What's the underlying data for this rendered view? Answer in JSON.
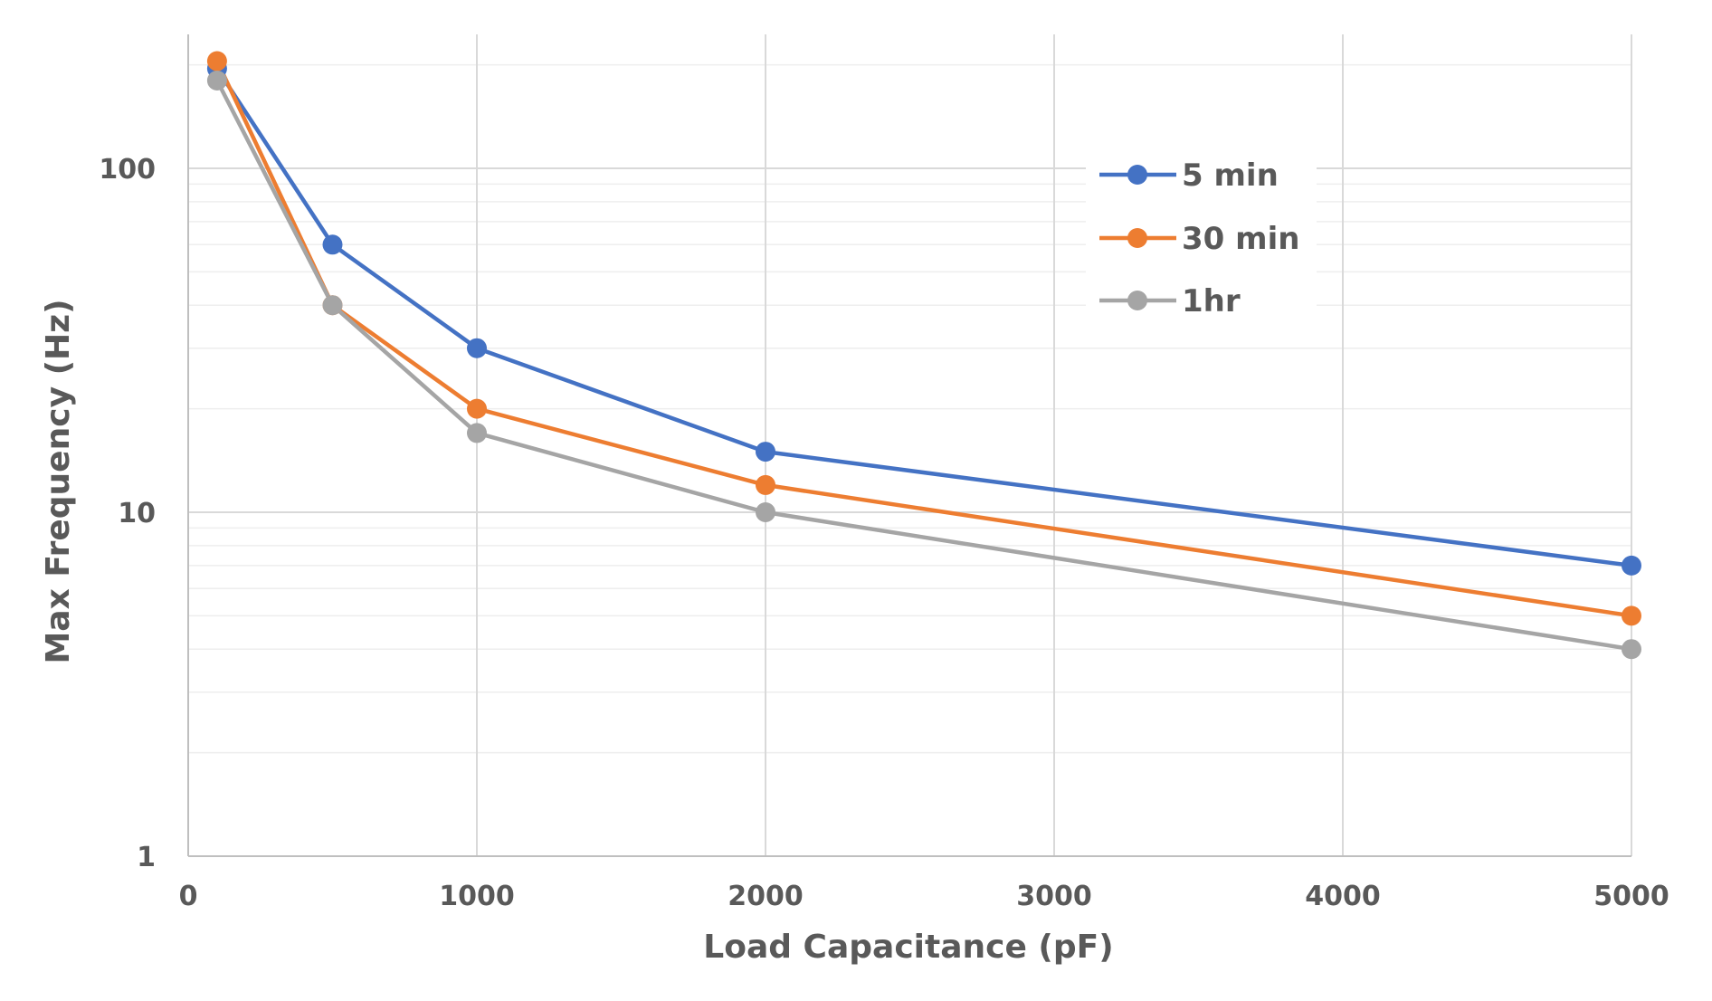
{
  "chart_data": {
    "type": "line",
    "title": "",
    "xlabel": "Load Capacitance (pF)",
    "ylabel": "Max Frequency (Hz)",
    "xlim": [
      0,
      5000
    ],
    "ylim": [
      1,
      250
    ],
    "y_scale": "log",
    "x_ticks": [
      0,
      1000,
      2000,
      3000,
      4000,
      5000
    ],
    "x_tick_labels": [
      "0",
      "1000",
      "2000",
      "3000",
      "4000",
      "5000"
    ],
    "y_ticks": [
      1,
      10,
      100
    ],
    "y_tick_labels": [
      "1",
      "10",
      "100"
    ],
    "grid": true,
    "legend_position": "top-right",
    "series": [
      {
        "name": "5 min",
        "color": "#4472C4",
        "x": [
          100,
          500,
          1000,
          2000,
          5000
        ],
        "y": [
          195,
          60,
          30,
          15,
          7
        ]
      },
      {
        "name": "30 min",
        "color": "#ED7D31",
        "x": [
          100,
          500,
          1000,
          2000,
          5000
        ],
        "y": [
          205,
          40,
          20,
          12,
          5
        ]
      },
      {
        "name": "1hr",
        "color": "#A5A5A5",
        "x": [
          100,
          500,
          1000,
          2000,
          5000
        ],
        "y": [
          180,
          40,
          17,
          10,
          4
        ]
      }
    ]
  }
}
